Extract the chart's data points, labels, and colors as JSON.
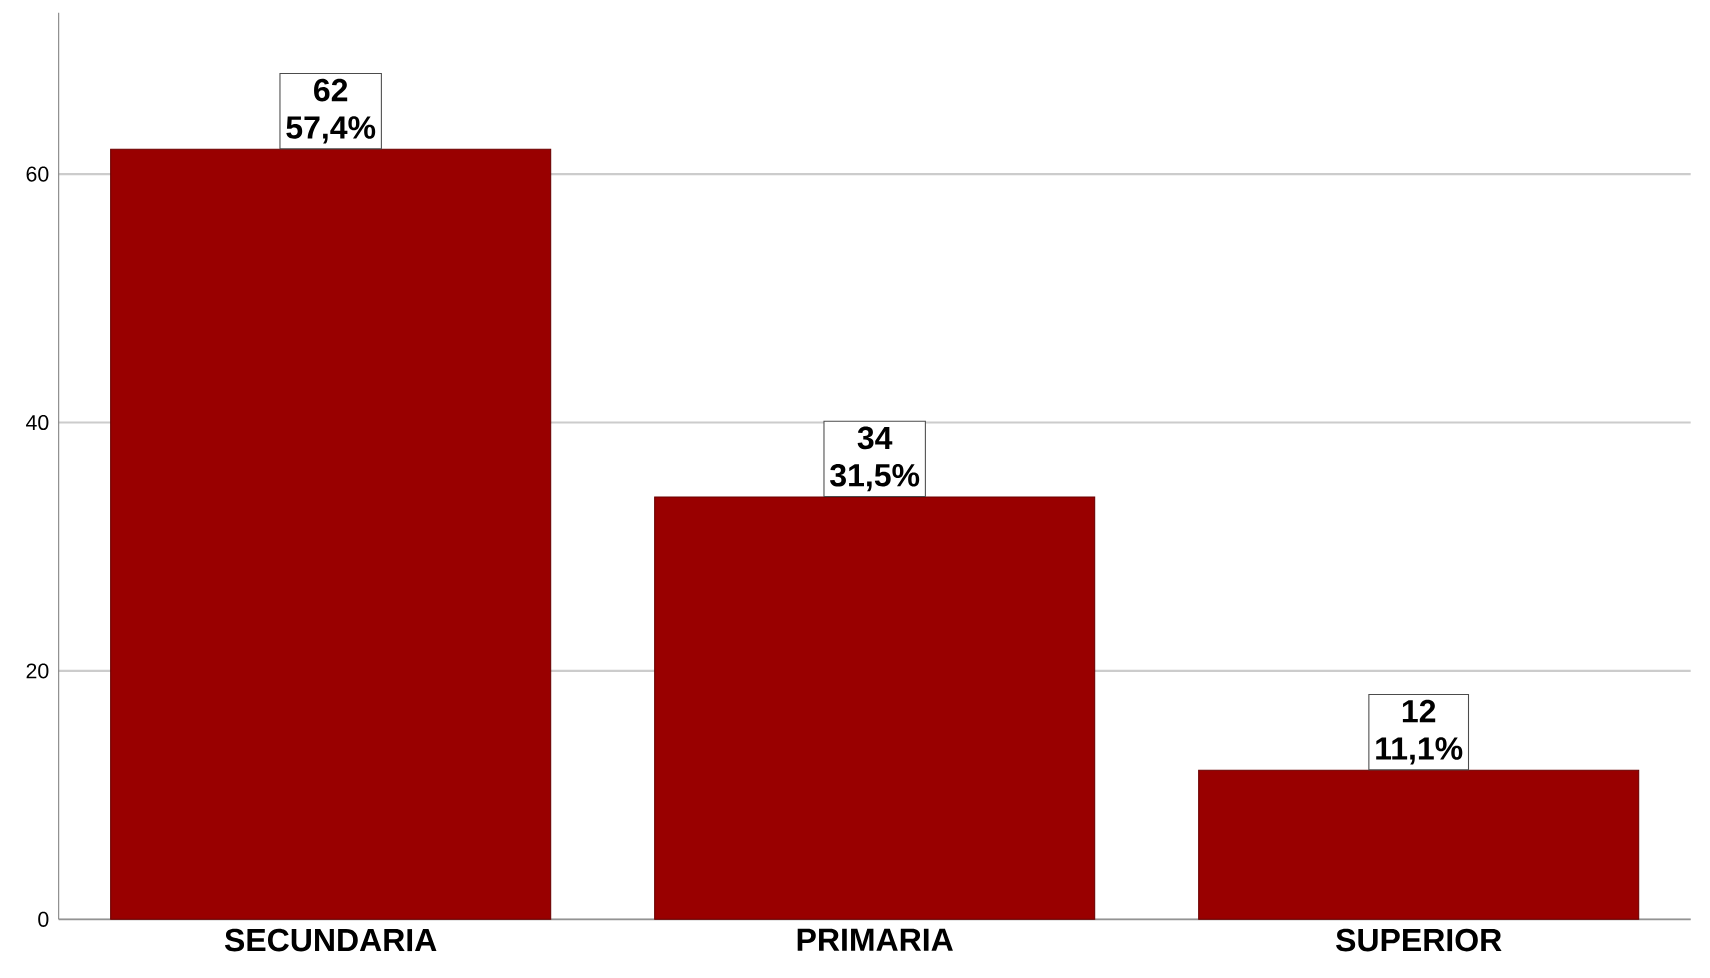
{
  "chart_data": {
    "type": "bar",
    "categories": [
      "SECUNDARIA",
      "PRIMARIA",
      "SUPERIOR"
    ],
    "values": [
      62,
      34,
      12
    ],
    "color": "#990000",
    "ylim": [
      0,
      73
    ],
    "yticks": [
      0,
      20,
      40,
      60
    ],
    "grid": "y",
    "data_labels": true,
    "annotations": [
      {
        "text": "57,4%",
        "x": "SECUNDARIA",
        "y": 62
      },
      {
        "text": "31,5%",
        "x": "PRIMARIA",
        "y": 34
      },
      {
        "text": "11,1%",
        "x": "SUPERIOR",
        "y": 12
      }
    ]
  }
}
